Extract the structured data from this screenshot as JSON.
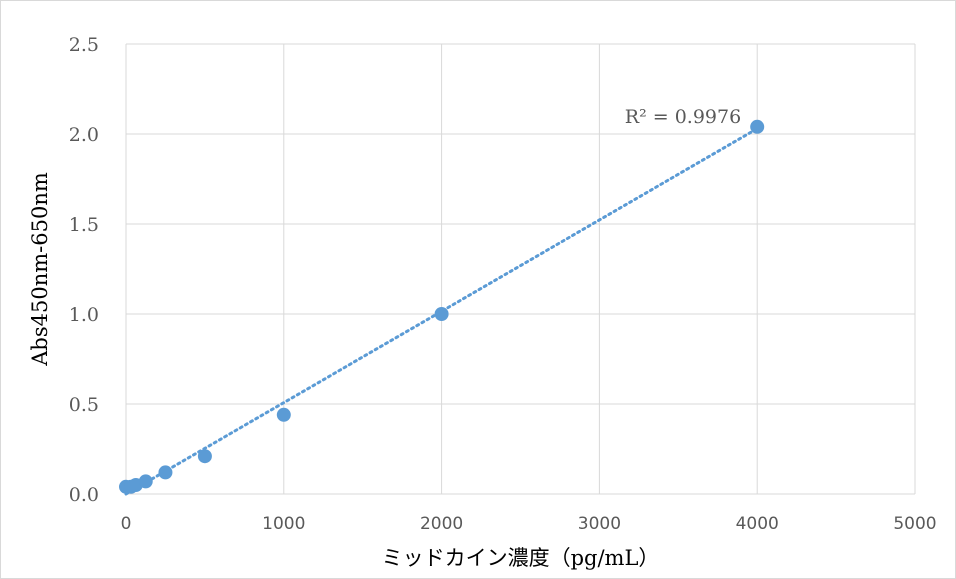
{
  "chart_data": {
    "type": "scatter",
    "title": "",
    "xlabel": "ミッドカイン濃度（pg/mL）",
    "ylabel": "Abs450nm-650nm",
    "xlim": [
      0,
      5000
    ],
    "ylim": [
      0,
      2.5
    ],
    "x_ticks": [
      "0",
      "1000",
      "2000",
      "3000",
      "4000",
      "5000"
    ],
    "y_ticks": [
      "0.0",
      "0.5",
      "1.0",
      "1.5",
      "2.0",
      "2.5"
    ],
    "grid": true,
    "legend": "none",
    "marker_color": "#5b9bd5",
    "series": [
      {
        "x": [
          0,
          31.25,
          62.5,
          125,
          250,
          500,
          1000,
          2000,
          4000
        ],
        "y": [
          0.04,
          0.04,
          0.05,
          0.07,
          0.12,
          0.21,
          0.44,
          1.0,
          2.04
        ]
      }
    ],
    "trendline": {
      "style": "dotted-linear",
      "color": "#5b9bd5",
      "x": [
        0,
        4000
      ],
      "y": [
        0.0,
        2.03
      ]
    },
    "annotation": "R² = 0.9976"
  }
}
